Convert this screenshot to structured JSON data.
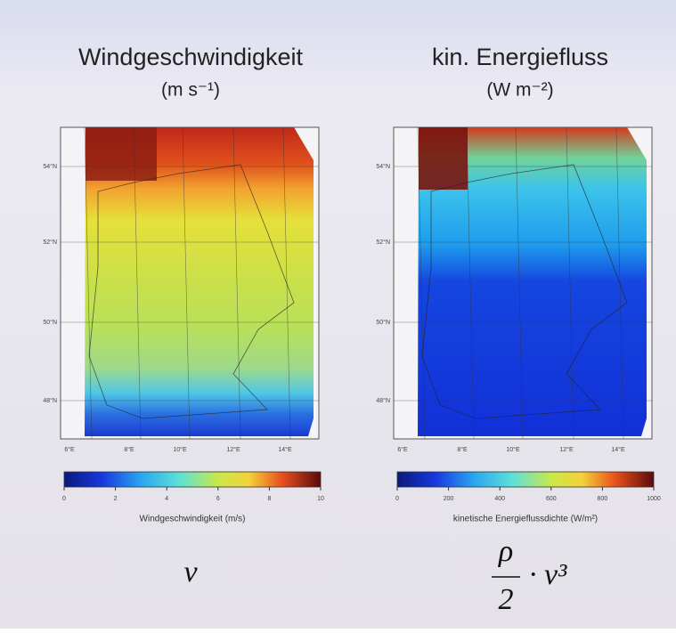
{
  "panels": [
    {
      "title": "Windgeschwindigkeit",
      "unit": "(m s⁻¹)",
      "lat_labels": [
        "54°N",
        "52°N",
        "50°N",
        "48°N"
      ],
      "lon_labels": [
        "6°E",
        "8°E",
        "10°E",
        "12°E",
        "14°E"
      ],
      "colorbar": {
        "ticks": [
          0,
          2,
          4,
          6,
          8,
          10
        ],
        "label": "Windgeschwindigkeit (m/s)"
      },
      "formula": {
        "main": "v"
      }
    },
    {
      "title": "kin. Energiefluss",
      "unit": "(W m⁻²)",
      "lat_labels": [
        "54°N",
        "52°N",
        "50°N",
        "48°N"
      ],
      "lon_labels": [
        "6°E",
        "8°E",
        "10°E",
        "12°E",
        "14°E"
      ],
      "colorbar": {
        "ticks": [
          0,
          200,
          400,
          600,
          800,
          1000
        ],
        "label": "kinetische Energieflussdichte (W/m²)"
      },
      "formula": {
        "numerator": "ρ",
        "denominator": "2",
        "tail": "· v³"
      }
    }
  ]
}
